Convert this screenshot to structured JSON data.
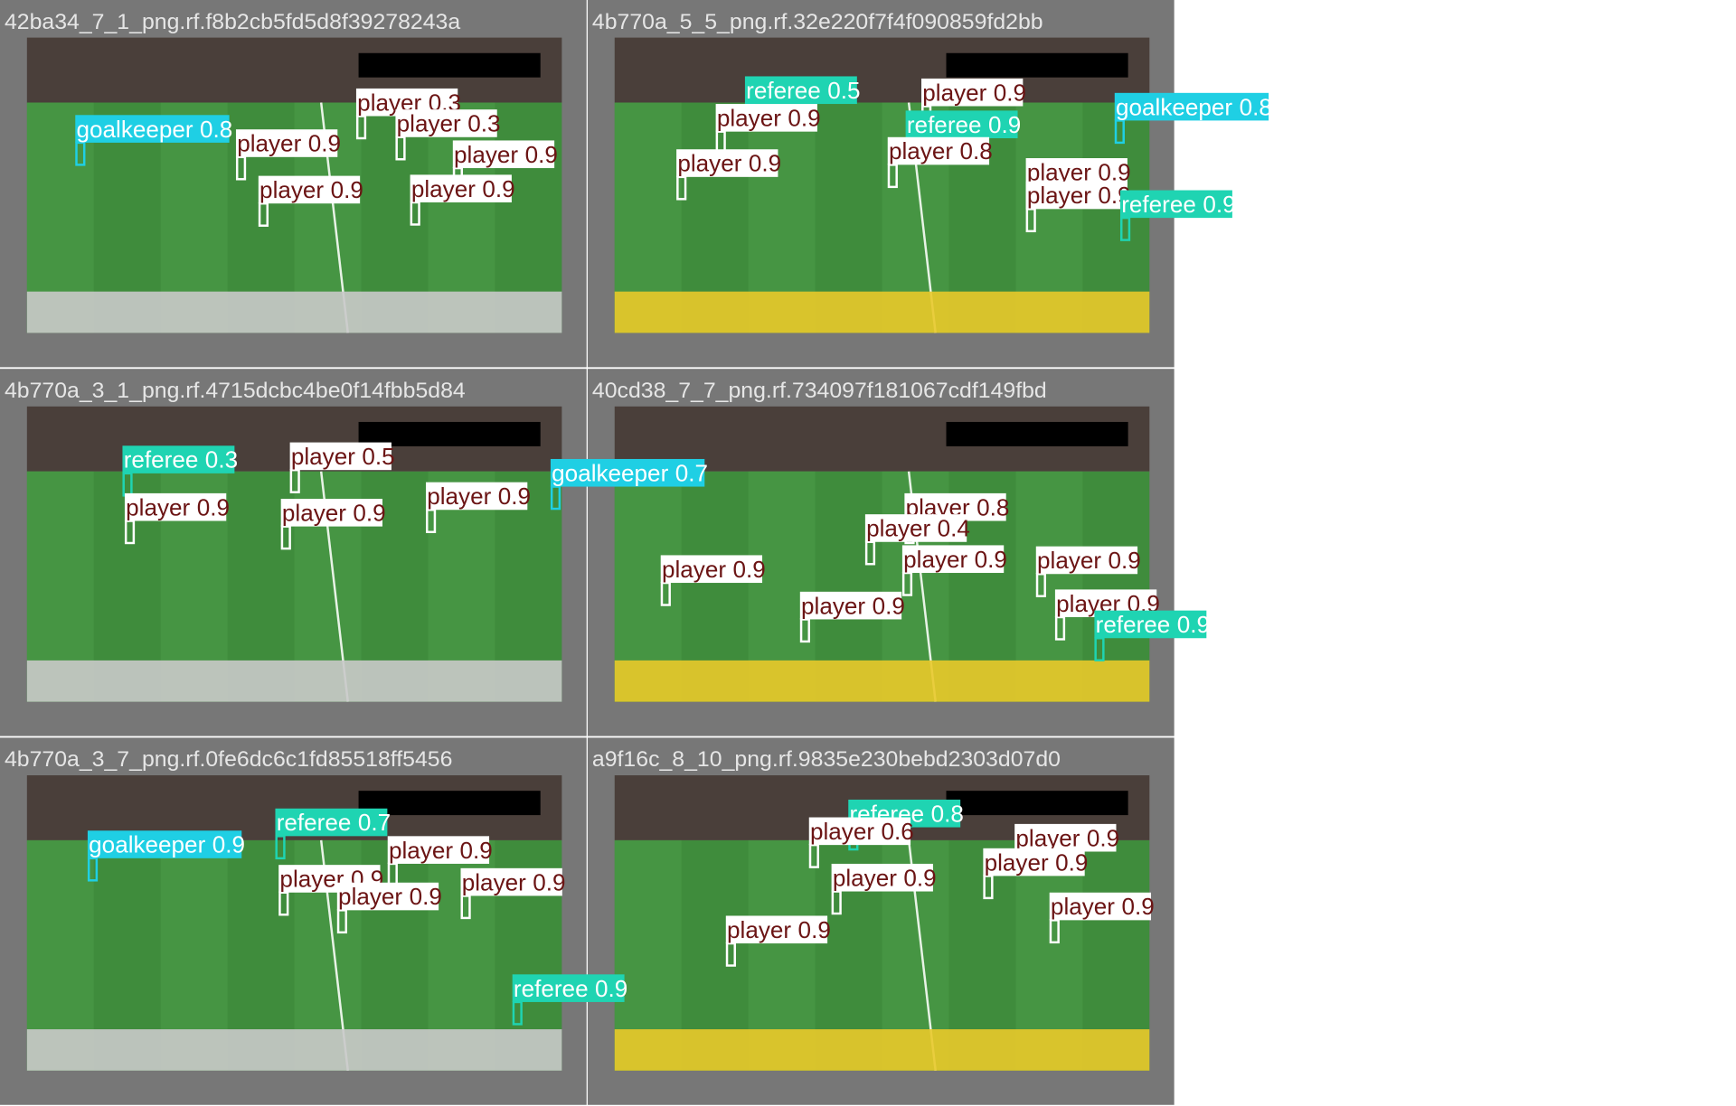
{
  "colors": {
    "player": {
      "box": "#ffffff",
      "text": "#6b1414",
      "frame": "#ffffff"
    },
    "goalkeeper": {
      "box": "#1fcfe4",
      "text": "#ffffff",
      "frame": "#1fcfe4"
    },
    "referee": {
      "box": "#1fd4b2",
      "text": "#ffffff",
      "frame": "#1fd4b2"
    }
  },
  "tiles": [
    {
      "filename": "42ba34_7_1_png.rf.f8b2cb5fd5d8f39278243a",
      "detections": [
        {
          "class": "player",
          "conf": 0.3
        },
        {
          "class": "player",
          "conf": 0.3
        },
        {
          "class": "goalkeeper",
          "conf": 0.8
        },
        {
          "class": "player",
          "conf": 0.9
        },
        {
          "class": "player",
          "conf": 0.9
        },
        {
          "class": "player",
          "conf": 0.9
        },
        {
          "class": "player",
          "conf": 0.9
        }
      ]
    },
    {
      "filename": "4b770a_5_5_png.rf.32e220f7f4f090859fd2bb",
      "detections": [
        {
          "class": "referee",
          "conf": 0.5
        },
        {
          "class": "player",
          "conf": 0.9
        },
        {
          "class": "goalkeeper",
          "conf": 0.8
        },
        {
          "class": "player",
          "conf": 0.9
        },
        {
          "class": "referee",
          "conf": 0.9
        },
        {
          "class": "player",
          "conf": 0.8
        },
        {
          "class": "player",
          "conf": 0.9
        },
        {
          "class": "player",
          "conf": 0.9
        },
        {
          "class": "player",
          "conf": 0.9
        },
        {
          "class": "referee",
          "conf": 0.9
        }
      ]
    },
    {
      "filename": "4b770a_3_1_png.rf.4715dcbc4be0f14fbb5d84",
      "detections": [
        {
          "class": "referee",
          "conf": 0.3
        },
        {
          "class": "player",
          "conf": 0.5
        },
        {
          "class": "goalkeeper",
          "conf": 0.7
        },
        {
          "class": "player",
          "conf": 0.9
        },
        {
          "class": "player",
          "conf": 0.9
        },
        {
          "class": "player",
          "conf": 0.9
        }
      ]
    },
    {
      "filename": "40cd38_7_7_png.rf.734097f181067cdf149fbd",
      "detections": [
        {
          "class": "player",
          "conf": 0.8
        },
        {
          "class": "player",
          "conf": 0.4
        },
        {
          "class": "player",
          "conf": 0.9
        },
        {
          "class": "player",
          "conf": 0.9
        },
        {
          "class": "player",
          "conf": 0.9
        },
        {
          "class": "player",
          "conf": 0.9
        },
        {
          "class": "player",
          "conf": 0.9
        },
        {
          "class": "referee",
          "conf": 0.9
        }
      ]
    },
    {
      "filename": "4b770a_3_7_png.rf.0fe6dc6c1fd85518ff5456",
      "detections": [
        {
          "class": "referee",
          "conf": 0.7
        },
        {
          "class": "goalkeeper",
          "conf": 0.9
        },
        {
          "class": "player",
          "conf": 0.9
        },
        {
          "class": "player",
          "conf": 0.9
        },
        {
          "class": "player",
          "conf": 0.9
        },
        {
          "class": "player",
          "conf": 0.9
        },
        {
          "class": "referee",
          "conf": 0.9
        }
      ]
    },
    {
      "filename": "a9f16c_8_10_png.rf.9835e230bebd2303d07d0",
      "detections": [
        {
          "class": "referee",
          "conf": 0.8
        },
        {
          "class": "player",
          "conf": 0.6
        },
        {
          "class": "player",
          "conf": 0.9
        },
        {
          "class": "player",
          "conf": 0.9
        },
        {
          "class": "player",
          "conf": 0.9
        },
        {
          "class": "player",
          "conf": 0.9
        },
        {
          "class": "player",
          "conf": 0.9
        }
      ]
    }
  ]
}
